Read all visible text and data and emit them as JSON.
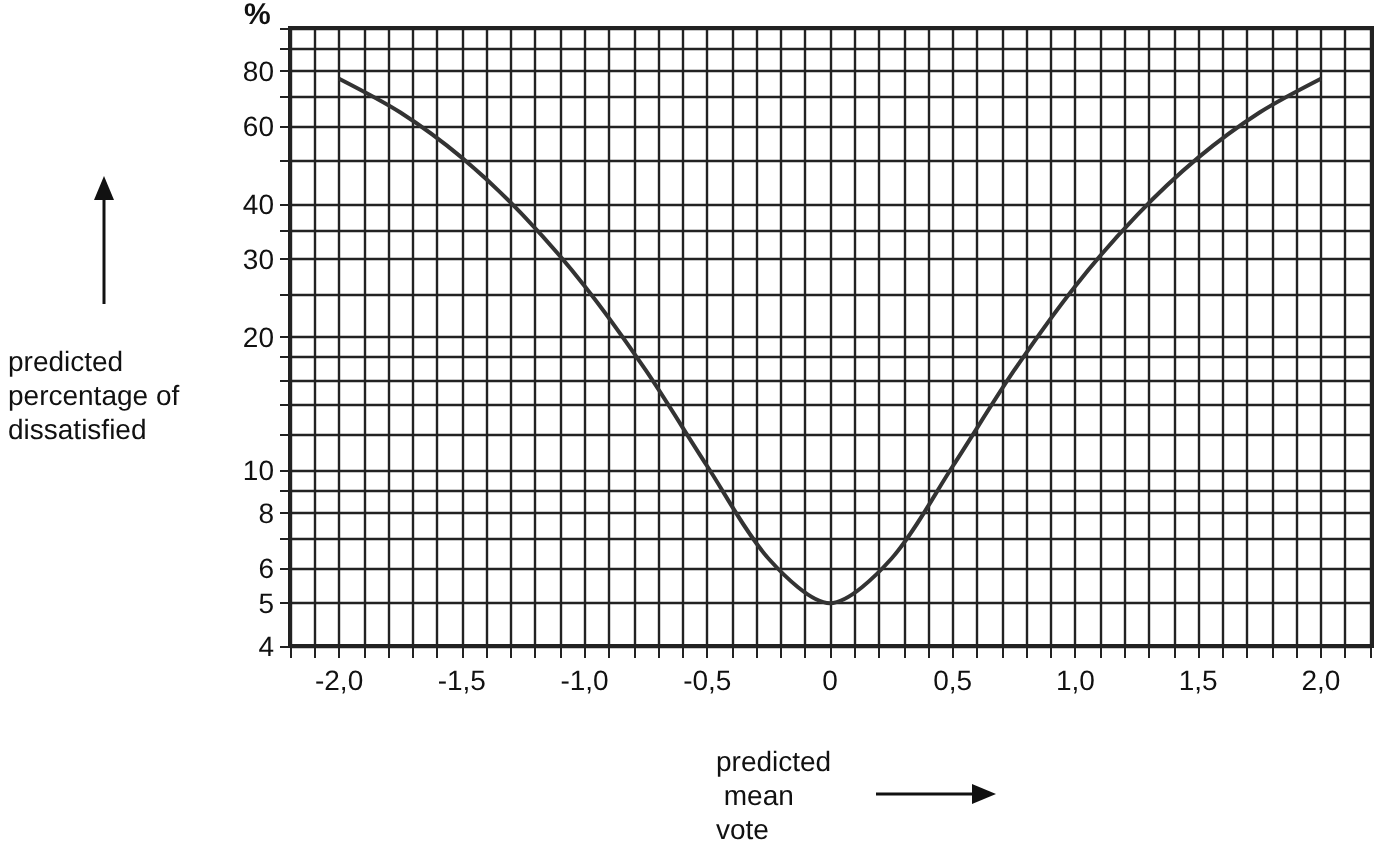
{
  "chart_data": {
    "type": "line",
    "xlabel": "predicted mean vote",
    "ylabel": "predicted percentage of dissatisfied",
    "annotations": [
      "%"
    ],
    "x": [
      -2,
      -1.75,
      -1.5,
      -1.25,
      -1,
      -0.75,
      -0.5,
      -0.25,
      0,
      0.25,
      0.5,
      0.75,
      1,
      1.25,
      1.5,
      1.75,
      2
    ],
    "series": [
      {
        "color": "#333333",
        "values": [
          76.8,
          64.4,
          50.9,
          37.7,
          26.1,
          16.8,
          10.2,
          6.3,
          5,
          6.3,
          10.2,
          16.8,
          26.1,
          37.7,
          50.9,
          64.4,
          76.8
        ]
      }
    ],
    "xlim": [
      -2.2,
      2.2
    ],
    "xticks": [
      {
        "value": -2.2,
        "label": null
      },
      {
        "value": -2.1,
        "label": null
      },
      {
        "value": -2,
        "label": "-2,0"
      },
      {
        "value": -1.9,
        "label": null
      },
      {
        "value": -1.8,
        "label": null
      },
      {
        "value": -1.7,
        "label": null
      },
      {
        "value": -1.6,
        "label": null
      },
      {
        "value": -1.5,
        "label": "-1,5"
      },
      {
        "value": -1.4,
        "label": null
      },
      {
        "value": -1.3,
        "label": null
      },
      {
        "value": -1.2,
        "label": null
      },
      {
        "value": -1.1,
        "label": null
      },
      {
        "value": -1,
        "label": "-1,0"
      },
      {
        "value": -0.9,
        "label": null
      },
      {
        "value": -0.8,
        "label": null
      },
      {
        "value": -0.7,
        "label": null
      },
      {
        "value": -0.6,
        "label": null
      },
      {
        "value": -0.5,
        "label": "-0,5"
      },
      {
        "value": -0.4,
        "label": null
      },
      {
        "value": -0.3,
        "label": null
      },
      {
        "value": -0.2,
        "label": null
      },
      {
        "value": -0.1,
        "label": null
      },
      0,
      {
        "value": 0.1,
        "label": null
      },
      {
        "value": 0.2,
        "label": null
      },
      {
        "value": 0.3,
        "label": null
      },
      {
        "value": 0.4,
        "label": null
      },
      {
        "value": 0.5,
        "label": "0,5"
      },
      {
        "value": 0.6,
        "label": null
      },
      {
        "value": 0.7,
        "label": null
      },
      {
        "value": 0.8,
        "label": null
      },
      {
        "value": 0.9,
        "label": null
      },
      {
        "value": 1,
        "label": "1,0"
      },
      {
        "value": 1.1,
        "label": null
      },
      {
        "value": 1.2,
        "label": null
      },
      {
        "value": 1.3,
        "label": null
      },
      {
        "value": 1.4,
        "label": null
      },
      {
        "value": 1.5,
        "label": "1,5"
      },
      {
        "value": 1.6,
        "label": null
      },
      {
        "value": 1.7,
        "label": null
      },
      {
        "value": 1.8,
        "label": null
      },
      {
        "value": 1.9,
        "label": null
      },
      {
        "value": 2,
        "label": "2,0"
      },
      {
        "value": 2.1,
        "label": null
      },
      {
        "value": 2.2,
        "label": null
      }
    ],
    "ylim": [
      4,
      100
    ],
    "log": true,
    "yticks": [
      4,
      5,
      6,
      {
        "value": 7,
        "label": null
      },
      8,
      {
        "value": 9,
        "label": null
      },
      10,
      {
        "value": 12,
        "label": null
      },
      {
        "value": 14,
        "label": null
      },
      {
        "value": 16,
        "label": null
      },
      {
        "value": 18,
        "label": null
      },
      20,
      {
        "value": 25,
        "label": null
      },
      30,
      {
        "value": 35,
        "label": null
      },
      40,
      {
        "value": 50,
        "label": null
      },
      60,
      {
        "value": 70,
        "label": null
      },
      80,
      {
        "value": 90,
        "label": null
      },
      {
        "value": 100,
        "label": null
      }
    ],
    "grid": true,
    "marker": "none",
    "line_style": "solid"
  }
}
